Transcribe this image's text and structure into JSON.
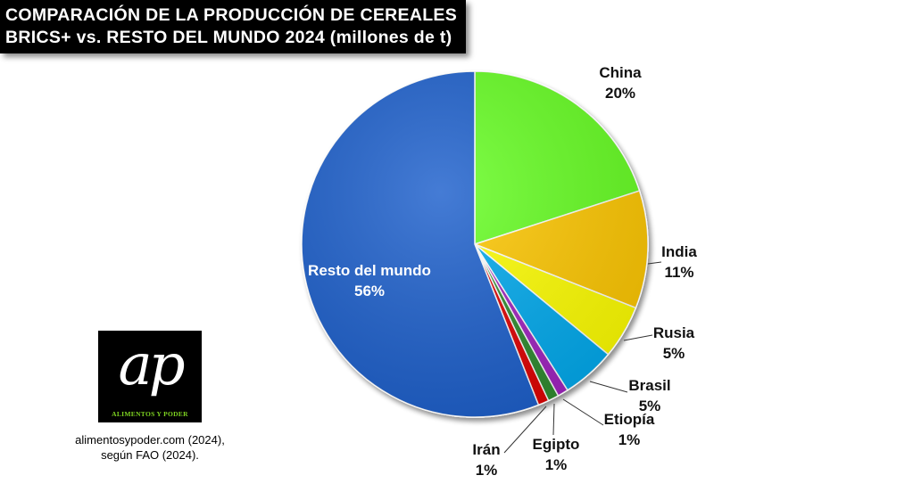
{
  "title": {
    "line1": "COMPARACIÓN DE LA PRODUCCIÓN DE CEREALES",
    "line2": "BRICS+ vs. RESTO DEL MUNDO 2024 (millones de t)"
  },
  "logo": {
    "mark": "ap",
    "text": "ALIMENTOS Y PODER"
  },
  "source": {
    "line1": "alimentosypoder.com (2024),",
    "line2": "según FAO (2024)."
  },
  "chart_data": {
    "type": "pie",
    "title": "COMPARACIÓN DE LA PRODUCCIÓN DE CEREALES BRICS+ vs. RESTO DEL MUNDO 2024 (millones de t)",
    "slices": [
      {
        "name": "China",
        "value": 20,
        "label": "20%",
        "color": "#66ff22"
      },
      {
        "name": "India",
        "value": 11,
        "label": "11%",
        "color": "#ffc800"
      },
      {
        "name": "Rusia",
        "value": 5,
        "label": "5%",
        "color": "#ffff00"
      },
      {
        "name": "Brasil",
        "value": 5,
        "label": "5%",
        "color": "#00aaee"
      },
      {
        "name": "Etiopía",
        "value": 1,
        "label": "1%",
        "color": "#a020c0"
      },
      {
        "name": "Egipto",
        "value": 1,
        "label": "1%",
        "color": "#2e8b2e"
      },
      {
        "name": "Irán",
        "value": 1,
        "label": "1%",
        "color": "#e00000"
      },
      {
        "name": "Resto del mundo",
        "value": 56,
        "label": "56%",
        "color": "#1a5fcc"
      }
    ]
  }
}
